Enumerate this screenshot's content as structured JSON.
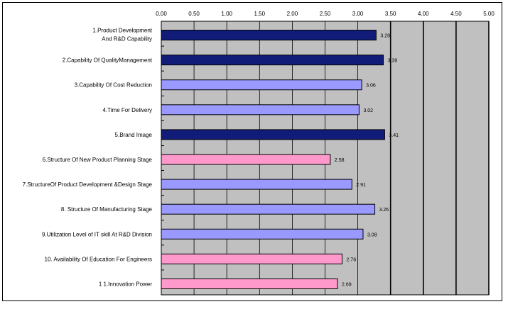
{
  "chart_data": {
    "type": "bar",
    "orientation": "horizontal",
    "title": "",
    "xlabel": "",
    "ylabel": "",
    "xlim": [
      0,
      5
    ],
    "tick_labels": [
      "0.00",
      "0.50",
      "1.00",
      "1.50",
      "2.00",
      "2.50",
      "3.00",
      "3.50",
      "4.00",
      "4.50",
      "5.00"
    ],
    "grid": true,
    "categories": [
      [
        "1.Product Development",
        "And R&D Capability"
      ],
      [
        "2.Capability Of QualityManagement"
      ],
      [
        "3.Capability Of Cost Reduction"
      ],
      [
        "4.Time For Delivery"
      ],
      [
        "5.Brand Image"
      ],
      [
        "6.Structure Of New Product Planning Stage"
      ],
      [
        "7.StructureOf Product Development &Design Stage"
      ],
      [
        "8. Structure  Of  Manufacturing Stage"
      ],
      [
        "9.Utilization Level of  IT skill At R&D Division"
      ],
      [
        "10. Availability Of Education For Engineers"
      ],
      [
        "1 1.Innovation Power"
      ]
    ],
    "values": [
      3.28,
      3.39,
      3.06,
      3.02,
      3.41,
      2.58,
      2.91,
      3.26,
      3.08,
      2.76,
      2.69
    ],
    "value_labels": [
      "3.28",
      "3.39",
      "3.06",
      "3.02",
      "3.41",
      "2.58",
      "2.91",
      "3.26",
      "3.08",
      "2.76",
      "2.69"
    ],
    "bar_colors": [
      "#111c78",
      "#111c78",
      "#9999ff",
      "#9999ff",
      "#111c78",
      "#ff99cc",
      "#9999ff",
      "#9999ff",
      "#9999ff",
      "#ff99cc",
      "#ff99cc"
    ],
    "plot_background": "#c0c0c0"
  }
}
